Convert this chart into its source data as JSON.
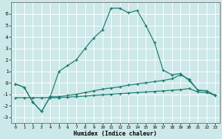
{
  "xlabel": "Humidex (Indice chaleur)",
  "bg_color": "#cce8e8",
  "grid_color": "#aacccc",
  "line_color": "#1a7a6e",
  "xlim": [
    -0.5,
    23.5
  ],
  "ylim": [
    -3.5,
    7.0
  ],
  "xticks": [
    0,
    1,
    2,
    3,
    4,
    5,
    6,
    7,
    8,
    9,
    10,
    11,
    12,
    13,
    14,
    15,
    16,
    17,
    18,
    19,
    20,
    21,
    22,
    23
  ],
  "yticks": [
    -3,
    -2,
    -1,
    0,
    1,
    2,
    3,
    4,
    5,
    6
  ],
  "x": [
    0,
    1,
    2,
    3,
    4,
    5,
    6,
    7,
    8,
    9,
    10,
    11,
    12,
    13,
    14,
    15,
    16,
    17,
    18,
    19,
    20,
    21,
    22,
    23
  ],
  "bell_y": [
    -0.1,
    -0.4,
    -1.7,
    -2.5,
    -1.2,
    1.0,
    1.5,
    2.0,
    3.0,
    3.9,
    4.6,
    6.5,
    6.5,
    6.1,
    6.3,
    5.0,
    3.5,
    1.1,
    0.7,
    0.8,
    0.2,
    -0.65,
    -0.7,
    -1.1
  ],
  "mid_y": [
    -0.1,
    -0.4,
    -1.7,
    -2.5,
    -1.2,
    -1.2,
    -1.1,
    -1.0,
    -0.85,
    -0.7,
    -0.55,
    -0.45,
    -0.35,
    -0.2,
    -0.1,
    0.0,
    0.1,
    0.2,
    0.35,
    0.7,
    0.3,
    -0.65,
    -0.7,
    -1.1
  ],
  "low_y": [
    -1.3,
    -1.3,
    -1.3,
    -1.3,
    -1.3,
    -1.3,
    -1.25,
    -1.2,
    -1.15,
    -1.1,
    -1.05,
    -1.0,
    -0.95,
    -0.9,
    -0.85,
    -0.8,
    -0.75,
    -0.7,
    -0.65,
    -0.6,
    -0.5,
    -0.8,
    -0.85,
    -1.1
  ]
}
